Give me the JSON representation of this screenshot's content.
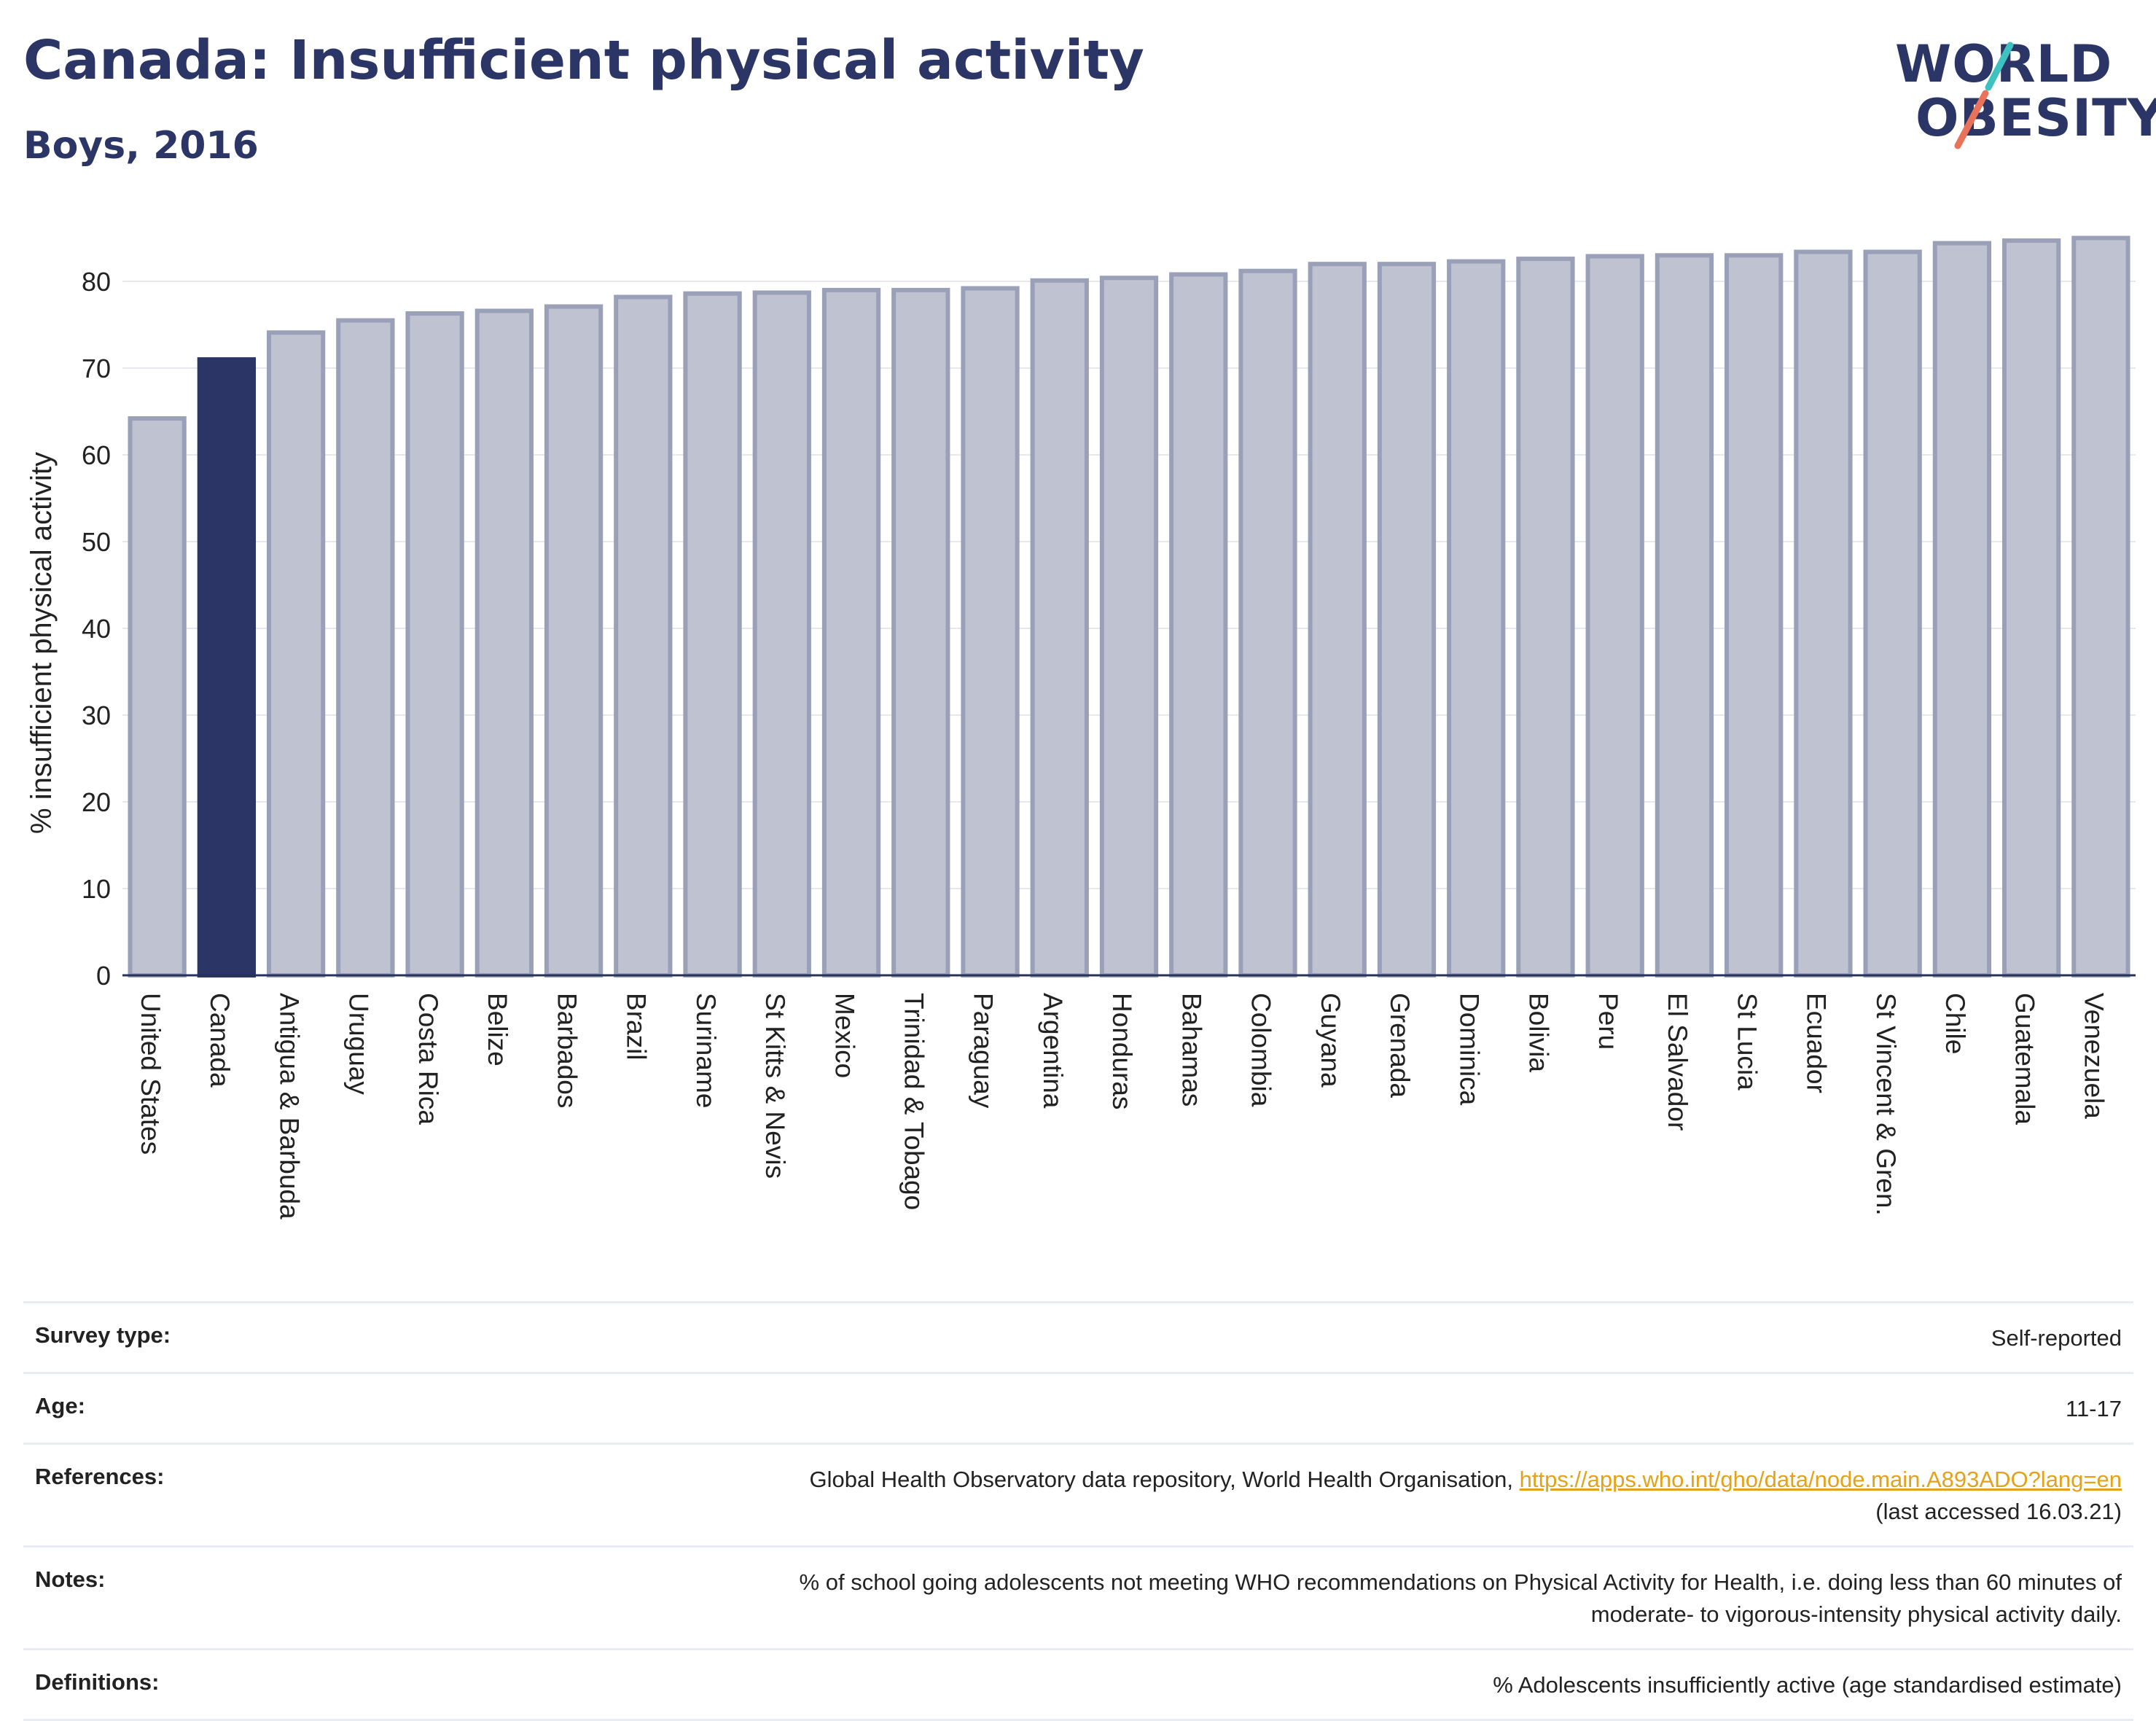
{
  "header": {
    "title": "Canada: Insufficient physical activity",
    "subtitle": "Boys, 2016"
  },
  "logo": {
    "line1": "WORLD",
    "line2": "OBESITY",
    "slash_colors": [
      "#3fc1c0",
      "#e8735a"
    ]
  },
  "colors": {
    "bar": "#bfc2d0",
    "bar_edge": "#9aa0b8",
    "highlight": "#2b3566",
    "grid": "#e6e8ee",
    "axis": "#28335c"
  },
  "chart_data": {
    "type": "bar",
    "title": "Canada: Insufficient physical activity",
    "subtitle": "Boys, 2016",
    "ylabel": "% insufficient physical activity",
    "xlabel": "",
    "ylim": [
      0,
      85
    ],
    "yticks": [
      0,
      10,
      20,
      30,
      40,
      50,
      60,
      70,
      80
    ],
    "grid": true,
    "highlight": "Canada",
    "categories": [
      "United States",
      "Canada",
      "Antigua & Barbuda",
      "Uruguay",
      "Costa Rica",
      "Belize",
      "Barbados",
      "Brazil",
      "Suriname",
      "St Kitts & Nevis",
      "Mexico",
      "Trinidad & Tobago",
      "Paraguay",
      "Argentina",
      "Honduras",
      "Bahamas",
      "Colombia",
      "Guyana",
      "Grenada",
      "Dominica",
      "Bolivia",
      "Peru",
      "El Salvador",
      "St Lucia",
      "Ecuador",
      "St Vincent & Gren.",
      "Chile",
      "Guatemala",
      "Venezuela"
    ],
    "values": [
      64.2,
      71.0,
      74.1,
      75.5,
      76.3,
      76.6,
      77.1,
      78.2,
      78.6,
      78.7,
      79.0,
      79.0,
      79.2,
      80.1,
      80.4,
      80.8,
      81.2,
      82.0,
      82.0,
      82.3,
      82.6,
      82.9,
      83.0,
      83.0,
      83.4,
      83.4,
      84.4,
      84.7,
      85.0
    ]
  },
  "info": {
    "survey_type": {
      "label": "Survey type:",
      "value": "Self-reported"
    },
    "age": {
      "label": "Age:",
      "value": "11-17"
    },
    "references": {
      "label": "References:",
      "text": "Global Health Observatory data repository, World Health Organisation, ",
      "link": "https://apps.who.int/gho/data/node.main.A893ADO?lang=en",
      "accessed": "(last accessed 16.03.21)"
    },
    "notes": {
      "label": "Notes:",
      "line1": "% of school going adolescents not meeting WHO recommendations on Physical Activity for Health, i.e. doing less than 60 minutes of",
      "line2": "moderate- to vigorous-intensity physical activity daily."
    },
    "definitions": {
      "label": "Definitions:",
      "value": "% Adolescents insufficiently active (age standardised estimate)"
    }
  }
}
